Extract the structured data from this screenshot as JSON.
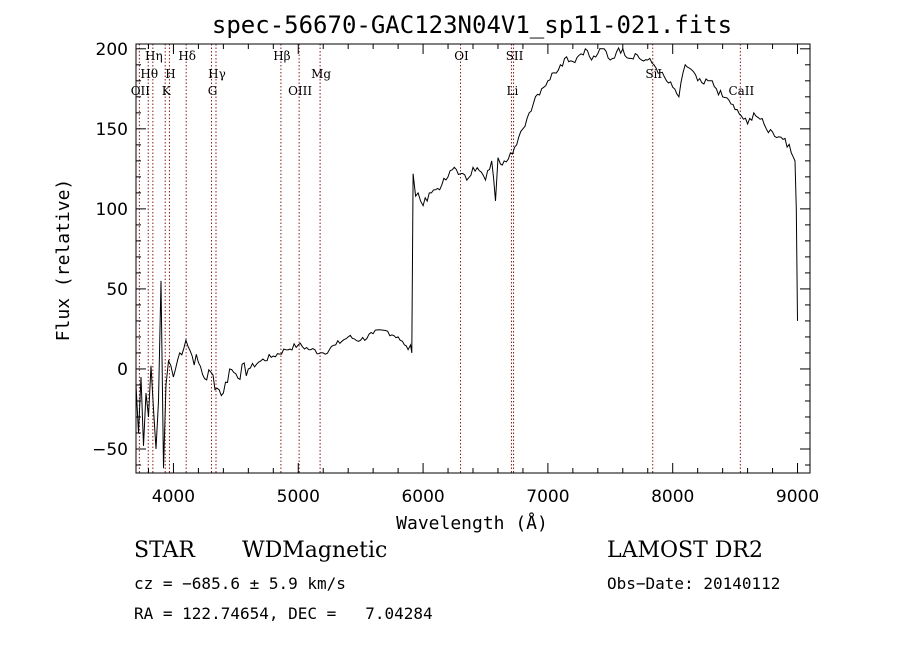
{
  "chart_data": {
    "type": "line",
    "title": "spec-56670-GAC123N04V1_sp11-021.fits",
    "xlabel": "Wavelength (Å)",
    "ylabel": "Flux (relative)",
    "xlim": [
      3700,
      9100
    ],
    "ylim": [
      -65,
      203
    ],
    "xticks": [
      4000,
      5000,
      6000,
      7000,
      8000,
      9000
    ],
    "yticks": [
      -50,
      0,
      50,
      100,
      150,
      200
    ],
    "grid": false,
    "series": [
      {
        "x": [
          3700,
          3720,
          3740,
          3760,
          3780,
          3800,
          3820,
          3840,
          3860,
          3880,
          3900,
          3920,
          3940,
          3960,
          3980,
          4000,
          4050,
          4100,
          4150,
          4200,
          4250,
          4300,
          4350,
          4400,
          4450,
          4500,
          4600,
          4700,
          4800,
          4900,
          5000,
          5100,
          5200,
          5300,
          5400,
          5500,
          5600,
          5700,
          5800,
          5850,
          5880,
          5900,
          5910,
          5920,
          5940,
          5960,
          6000,
          6050,
          6100,
          6150,
          6200,
          6250,
          6300,
          6350,
          6400,
          6450,
          6500,
          6550,
          6580,
          6600,
          6620,
          6650,
          6700,
          6750,
          6800,
          6850,
          6900,
          6950,
          7000,
          7050,
          7100,
          7150,
          7200,
          7250,
          7300,
          7350,
          7400,
          7450,
          7500,
          7550,
          7600,
          7650,
          7700,
          7750,
          7800,
          7850,
          7900,
          7950,
          8000,
          8050,
          8100,
          8150,
          8200,
          8250,
          8300,
          8350,
          8400,
          8450,
          8500,
          8550,
          8600,
          8650,
          8700,
          8750,
          8800,
          8850,
          8900,
          8950,
          8980,
          8990,
          9000
        ],
        "y": [
          -10,
          -40,
          -5,
          -48,
          -15,
          -30,
          2,
          -25,
          -50,
          -20,
          55,
          -62,
          -10,
          5,
          2,
          -5,
          10,
          18,
          8,
          4,
          -6,
          -2,
          -12,
          -15,
          0,
          -3,
          0,
          5,
          8,
          12,
          15,
          12,
          10,
          15,
          20,
          18,
          22,
          24,
          20,
          15,
          12,
          15,
          10,
          122,
          108,
          110,
          102,
          110,
          112,
          115,
          120,
          126,
          122,
          118,
          126,
          124,
          118,
          130,
          105,
          132,
          128,
          130,
          135,
          140,
          150,
          160,
          170,
          175,
          180,
          185,
          190,
          195,
          192,
          196,
          200,
          193,
          197,
          200,
          193,
          198,
          200,
          194,
          197,
          193,
          193,
          190,
          185,
          180,
          176,
          170,
          190,
          187,
          180,
          178,
          180,
          175,
          170,
          168,
          162,
          158,
          153,
          160,
          156,
          150,
          148,
          145,
          144,
          135,
          130,
          100,
          30
        ]
      }
    ],
    "annotations": [
      {
        "label": "Hη",
        "x": 3835,
        "row": 1
      },
      {
        "label": "Hθ",
        "x": 3798,
        "row": 2
      },
      {
        "label": "OII",
        "x": 3727,
        "row": 3
      },
      {
        "label": "Hδ",
        "x": 4102,
        "row": 1
      },
      {
        "label": "H",
        "x": 3968,
        "row": 2
      },
      {
        "label": "K",
        "x": 3934,
        "row": 3
      },
      {
        "label": "Hγ",
        "x": 4341,
        "row": 2
      },
      {
        "label": "G",
        "x": 4305,
        "row": 3
      },
      {
        "label": "Hβ",
        "x": 4861,
        "row": 1
      },
      {
        "label": "Mg",
        "x": 5175,
        "row": 2
      },
      {
        "label": "OIII",
        "x": 5007,
        "row": 3
      },
      {
        "label": "OI",
        "x": 6300,
        "row": 1
      },
      {
        "label": "SII",
        "x": 6725,
        "row": 1
      },
      {
        "label": "Li",
        "x": 6708,
        "row": 3
      },
      {
        "label": "SiI",
        "x": 7840,
        "row": 2
      },
      {
        "label": "CaII",
        "x": 8542,
        "row": 3
      }
    ]
  },
  "info": {
    "class": "STAR",
    "subclass": "WDMagnetic",
    "survey": "LAMOST DR2",
    "cz": "cz = −685.6 ± 5.9 km/s",
    "obs_date": "Obs−Date: 20140112",
    "radec": "RA = 122.74654, DEC =   7.04284"
  },
  "colors": {
    "spectrum": "#000000",
    "line_marker": "#8b1a1a",
    "frame": "#000000"
  }
}
